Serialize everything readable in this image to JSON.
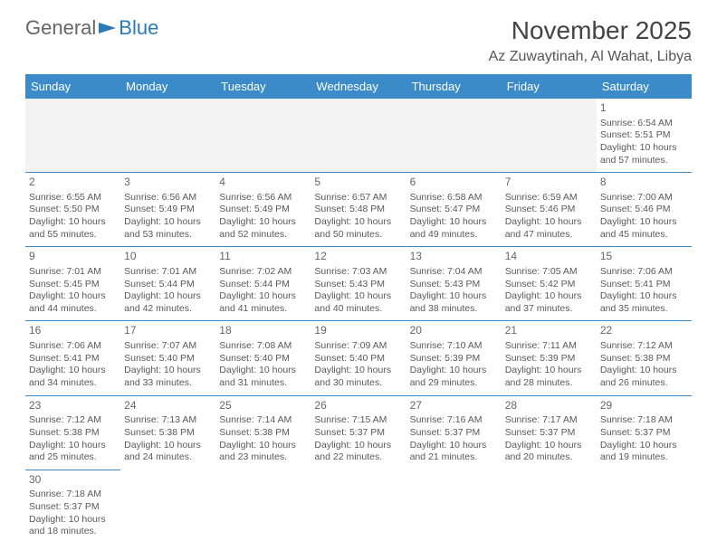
{
  "logo": {
    "part1": "General",
    "part2": "Blue"
  },
  "title": "November 2025",
  "location": "Az Zuwaytinah, Al Wahat, Libya",
  "colors": {
    "header_bg": "#3b8bc9",
    "header_text": "#ffffff",
    "cell_border": "#3b8bc9",
    "empty_bg": "#f3f3f3",
    "text": "#595959",
    "logo_gray": "#666666",
    "logo_blue": "#2a7ab8"
  },
  "day_headers": [
    "Sunday",
    "Monday",
    "Tuesday",
    "Wednesday",
    "Thursday",
    "Friday",
    "Saturday"
  ],
  "weeks": [
    [
      null,
      null,
      null,
      null,
      null,
      null,
      {
        "n": "1",
        "sr": "6:54 AM",
        "ss": "5:51 PM",
        "dl": "10 hours and 57 minutes."
      }
    ],
    [
      {
        "n": "2",
        "sr": "6:55 AM",
        "ss": "5:50 PM",
        "dl": "10 hours and 55 minutes."
      },
      {
        "n": "3",
        "sr": "6:56 AM",
        "ss": "5:49 PM",
        "dl": "10 hours and 53 minutes."
      },
      {
        "n": "4",
        "sr": "6:56 AM",
        "ss": "5:49 PM",
        "dl": "10 hours and 52 minutes."
      },
      {
        "n": "5",
        "sr": "6:57 AM",
        "ss": "5:48 PM",
        "dl": "10 hours and 50 minutes."
      },
      {
        "n": "6",
        "sr": "6:58 AM",
        "ss": "5:47 PM",
        "dl": "10 hours and 49 minutes."
      },
      {
        "n": "7",
        "sr": "6:59 AM",
        "ss": "5:46 PM",
        "dl": "10 hours and 47 minutes."
      },
      {
        "n": "8",
        "sr": "7:00 AM",
        "ss": "5:46 PM",
        "dl": "10 hours and 45 minutes."
      }
    ],
    [
      {
        "n": "9",
        "sr": "7:01 AM",
        "ss": "5:45 PM",
        "dl": "10 hours and 44 minutes."
      },
      {
        "n": "10",
        "sr": "7:01 AM",
        "ss": "5:44 PM",
        "dl": "10 hours and 42 minutes."
      },
      {
        "n": "11",
        "sr": "7:02 AM",
        "ss": "5:44 PM",
        "dl": "10 hours and 41 minutes."
      },
      {
        "n": "12",
        "sr": "7:03 AM",
        "ss": "5:43 PM",
        "dl": "10 hours and 40 minutes."
      },
      {
        "n": "13",
        "sr": "7:04 AM",
        "ss": "5:43 PM",
        "dl": "10 hours and 38 minutes."
      },
      {
        "n": "14",
        "sr": "7:05 AM",
        "ss": "5:42 PM",
        "dl": "10 hours and 37 minutes."
      },
      {
        "n": "15",
        "sr": "7:06 AM",
        "ss": "5:41 PM",
        "dl": "10 hours and 35 minutes."
      }
    ],
    [
      {
        "n": "16",
        "sr": "7:06 AM",
        "ss": "5:41 PM",
        "dl": "10 hours and 34 minutes."
      },
      {
        "n": "17",
        "sr": "7:07 AM",
        "ss": "5:40 PM",
        "dl": "10 hours and 33 minutes."
      },
      {
        "n": "18",
        "sr": "7:08 AM",
        "ss": "5:40 PM",
        "dl": "10 hours and 31 minutes."
      },
      {
        "n": "19",
        "sr": "7:09 AM",
        "ss": "5:40 PM",
        "dl": "10 hours and 30 minutes."
      },
      {
        "n": "20",
        "sr": "7:10 AM",
        "ss": "5:39 PM",
        "dl": "10 hours and 29 minutes."
      },
      {
        "n": "21",
        "sr": "7:11 AM",
        "ss": "5:39 PM",
        "dl": "10 hours and 28 minutes."
      },
      {
        "n": "22",
        "sr": "7:12 AM",
        "ss": "5:38 PM",
        "dl": "10 hours and 26 minutes."
      }
    ],
    [
      {
        "n": "23",
        "sr": "7:12 AM",
        "ss": "5:38 PM",
        "dl": "10 hours and 25 minutes."
      },
      {
        "n": "24",
        "sr": "7:13 AM",
        "ss": "5:38 PM",
        "dl": "10 hours and 24 minutes."
      },
      {
        "n": "25",
        "sr": "7:14 AM",
        "ss": "5:38 PM",
        "dl": "10 hours and 23 minutes."
      },
      {
        "n": "26",
        "sr": "7:15 AM",
        "ss": "5:37 PM",
        "dl": "10 hours and 22 minutes."
      },
      {
        "n": "27",
        "sr": "7:16 AM",
        "ss": "5:37 PM",
        "dl": "10 hours and 21 minutes."
      },
      {
        "n": "28",
        "sr": "7:17 AM",
        "ss": "5:37 PM",
        "dl": "10 hours and 20 minutes."
      },
      {
        "n": "29",
        "sr": "7:18 AM",
        "ss": "5:37 PM",
        "dl": "10 hours and 19 minutes."
      }
    ],
    [
      {
        "n": "30",
        "sr": "7:18 AM",
        "ss": "5:37 PM",
        "dl": "10 hours and 18 minutes."
      },
      null,
      null,
      null,
      null,
      null,
      null
    ]
  ],
  "labels": {
    "sunrise": "Sunrise: ",
    "sunset": "Sunset: ",
    "daylight": "Daylight: "
  }
}
